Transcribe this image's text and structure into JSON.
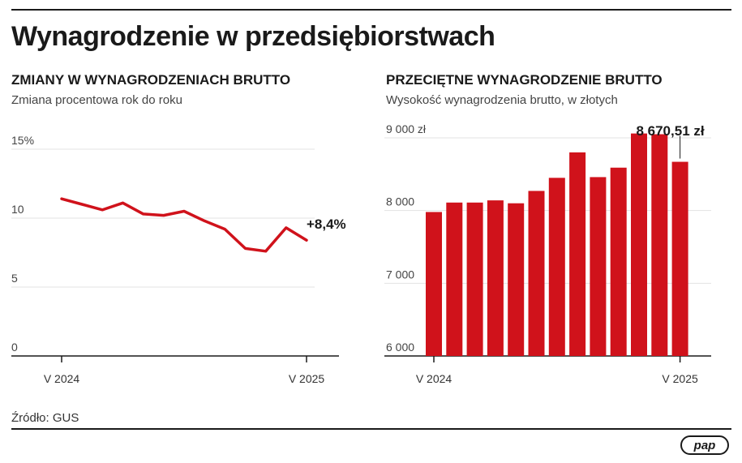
{
  "title": "Wynagrodzenie w przedsiębiorstwach",
  "source": "Źródło: GUS",
  "logo_text": "pap",
  "chart_data": [
    {
      "type": "line",
      "title": "ZMIANY W WYNAGRODZENIACH BRUTTO",
      "subtitle": "Zmiana procentowa rok do roku",
      "ylim": [
        0,
        15
      ],
      "yticks": [
        0,
        5,
        10,
        15
      ],
      "ytick_labels": [
        "0",
        "5",
        "10",
        "15%"
      ],
      "x_labels": [
        "V 2024",
        "V 2025"
      ],
      "values": [
        11.4,
        11.0,
        10.6,
        11.1,
        10.3,
        10.2,
        10.5,
        9.8,
        9.2,
        7.8,
        7.6,
        9.3,
        8.4
      ],
      "annotation": "+8,4%",
      "color": "#d0121b",
      "grid": true
    },
    {
      "type": "bar",
      "title": "PRZECIĘTNE WYNAGRODZENIE BRUTTO",
      "subtitle": "Wysokość wynagrodzenia brutto, w złotych",
      "ylim": [
        6000,
        9000
      ],
      "yticks": [
        6000,
        7000,
        8000,
        9000
      ],
      "ytick_labels": [
        "6 000",
        "7 000",
        "8 000",
        "9 000 zł"
      ],
      "x_labels": [
        "V 2024",
        "V 2025"
      ],
      "values": [
        7980,
        8110,
        8110,
        8140,
        8100,
        8270,
        8450,
        8800,
        8460,
        8590,
        9060,
        9050,
        8670.51
      ],
      "annotation": "8 670,51 zł",
      "color": "#d0121b",
      "grid": true
    }
  ]
}
